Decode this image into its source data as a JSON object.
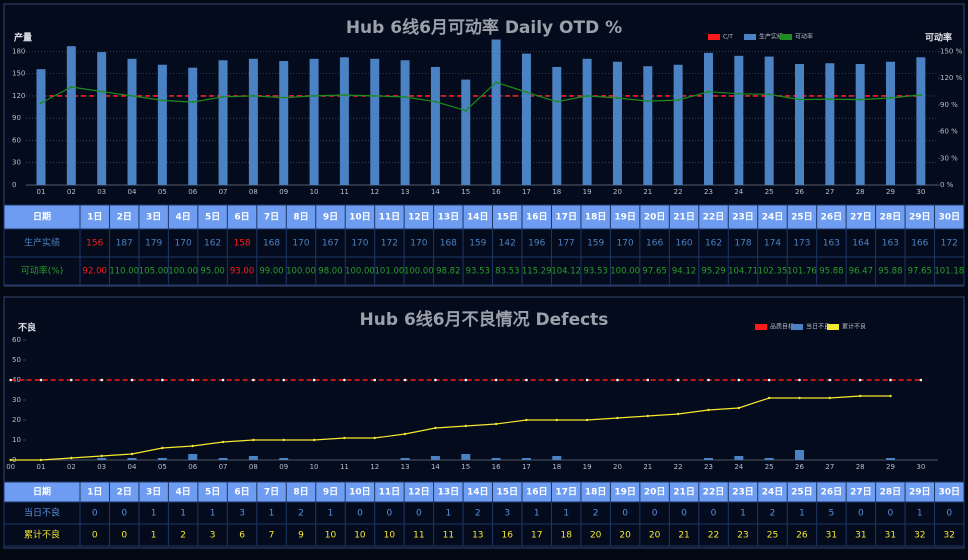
{
  "chart_data": [
    {
      "type": "bar",
      "title": "Hub 6线6月可动率 Daily OTD %",
      "y_label": "产量",
      "y2_label": "可动率",
      "categories": [
        "01",
        "02",
        "03",
        "04",
        "05",
        "06",
        "07",
        "08",
        "09",
        "10",
        "11",
        "12",
        "13",
        "14",
        "15",
        "16",
        "17",
        "18",
        "19",
        "20",
        "21",
        "22",
        "23",
        "24",
        "25",
        "26",
        "27",
        "28",
        "29",
        "30"
      ],
      "ylim": [
        0,
        198
      ],
      "yticks": [
        0,
        30,
        60,
        90,
        120,
        150,
        180
      ],
      "y2lim": [
        0,
        165
      ],
      "y2ticks": [
        {
          "value": 0,
          "label": "0 %"
        },
        {
          "value": 30,
          "label": "30 %"
        },
        {
          "value": 60,
          "label": "60 %"
        },
        {
          "value": 90,
          "label": "90 %"
        },
        {
          "value": 120,
          "label": "120 %"
        },
        {
          "value": 150,
          "label": "150 %"
        }
      ],
      "grid": true,
      "series": [
        {
          "name": "C/T",
          "color": "#ff1a1a",
          "type": "line",
          "dashed": true,
          "axis": "y2",
          "values": [
            100,
            100,
            100,
            100,
            100,
            100,
            100,
            100,
            100,
            100,
            100,
            100,
            100,
            100,
            100,
            100,
            100,
            100,
            100,
            100,
            100,
            100,
            100,
            100,
            100,
            100,
            100,
            100,
            100,
            100
          ]
        },
        {
          "name": "生产实绩",
          "color": "#4a82c3",
          "type": "bar",
          "values": [
            156,
            187,
            179,
            170,
            162,
            158,
            168,
            170,
            167,
            170,
            172,
            170,
            168,
            159,
            142,
            196,
            177,
            159,
            170,
            166,
            160,
            162,
            178,
            174,
            173,
            163,
            164,
            163,
            166,
            172
          ]
        },
        {
          "name": "可动率",
          "color": "#1e8c1e",
          "type": "line",
          "axis": "y2",
          "values": [
            92,
            110,
            105,
            100,
            95,
            93,
            99,
            100,
            98,
            100,
            101,
            100,
            98.82,
            93.53,
            83.53,
            115.29,
            104.12,
            93.53,
            100,
            97.65,
            94.12,
            95.29,
            104.71,
            102.35,
            101.76,
            95.88,
            96.47,
            95.88,
            97.65,
            101.18
          ],
          "value_labels": [
            "92.00",
            "110.00",
            "105.00",
            "100.00",
            "95.00",
            "93.00",
            "99.00",
            "100.00",
            "98.00",
            "100.00",
            "101.00",
            "100.00",
            "98.82",
            "93.53",
            "83.53",
            "115.29",
            "104.12",
            "93.53",
            "100.00",
            "97.65",
            "94.12",
            "95.29",
            "104.71",
            "102.35",
            "101.76",
            "95.88",
            "96.47",
            "95.88",
            "97.65",
            "101.18"
          ]
        }
      ]
    },
    {
      "type": "bar",
      "title": "Hub 6线6月不良情况 Defects",
      "y_label": "不良",
      "categories": [
        "00",
        "01",
        "02",
        "03",
        "04",
        "05",
        "06",
        "07",
        "08",
        "09",
        "10",
        "11",
        "12",
        "13",
        "14",
        "15",
        "16",
        "17",
        "18",
        "19",
        "20",
        "21",
        "22",
        "23",
        "24",
        "25",
        "26",
        "27",
        "28",
        "29",
        "30"
      ],
      "ylim": [
        0,
        60
      ],
      "yticks": [
        0,
        10,
        20,
        30,
        40,
        50,
        60
      ],
      "grid": false,
      "series": [
        {
          "name": "品质目标",
          "color": "#ff1a1a",
          "type": "line",
          "dashed": true,
          "values": [
            40,
            40,
            40,
            40,
            40,
            40,
            40,
            40,
            40,
            40,
            40,
            40,
            40,
            40,
            40,
            40,
            40,
            40,
            40,
            40,
            40,
            40,
            40,
            40,
            40,
            40,
            40,
            40,
            40,
            40,
            40
          ]
        },
        {
          "name": "当日不良",
          "color": "#4a82c3",
          "type": "bar",
          "values": [
            null,
            0,
            0,
            1,
            1,
            1,
            3,
            1,
            2,
            1,
            0,
            0,
            0,
            1,
            2,
            3,
            1,
            1,
            2,
            0,
            0,
            0,
            0,
            1,
            2,
            1,
            5,
            0,
            0,
            1,
            0
          ]
        },
        {
          "name": "累计不良",
          "color": "#f5e830",
          "type": "line",
          "values": [
            0,
            0,
            1,
            2,
            3,
            6,
            7,
            9,
            10,
            10,
            10,
            11,
            11,
            13,
            16,
            17,
            18,
            20,
            20,
            20,
            21,
            22,
            23,
            25,
            26,
            31,
            31,
            31,
            32,
            32,
            null
          ]
        }
      ]
    }
  ],
  "tables": [
    {
      "header": "日期",
      "columns": [
        "1日",
        "2日",
        "3日",
        "4日",
        "5日",
        "6日",
        "7日",
        "8日",
        "9日",
        "10日",
        "11日",
        "12日",
        "13日",
        "14日",
        "15日",
        "16日",
        "17日",
        "18日",
        "19日",
        "20日",
        "21日",
        "22日",
        "23日",
        "24日",
        "25日",
        "26日",
        "27日",
        "28日",
        "29日",
        "30日"
      ],
      "row_labels": [
        "生产实绩",
        "可动率(%)"
      ],
      "row_colors": [
        "#4a82c3",
        "#2a9d2a"
      ],
      "highlight_columns": [
        0,
        5
      ],
      "highlight_color": "#ff1a1a"
    },
    {
      "header": "日期",
      "columns": [
        "1日",
        "2日",
        "3日",
        "4日",
        "5日",
        "6日",
        "7日",
        "8日",
        "9日",
        "10日",
        "11日",
        "12日",
        "13日",
        "14日",
        "15日",
        "16日",
        "17日",
        "18日",
        "19日",
        "20日",
        "21日",
        "22日",
        "23日",
        "24日",
        "25日",
        "26日",
        "27日",
        "28日",
        "29日",
        "30日"
      ],
      "row_labels": [
        "当日不良",
        "累计不良"
      ],
      "row_colors": [
        "#5a90da",
        "#f5e830"
      ],
      "highlight_columns": [],
      "highlight_color": "#ff1a1a"
    }
  ]
}
